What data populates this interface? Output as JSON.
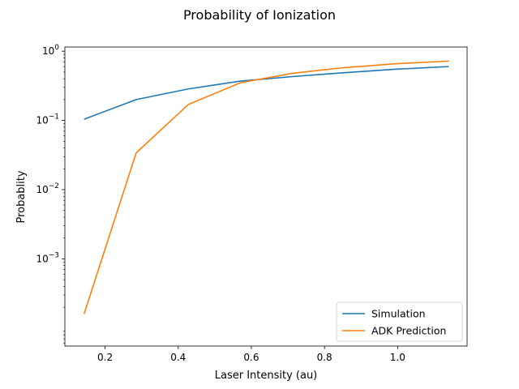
{
  "chart_data": {
    "type": "line",
    "title": "Probability of Ionization",
    "xlabel": "Laser Intensity (au)",
    "ylabel": "Probablity",
    "xlim": [
      0.09,
      1.19
    ],
    "ylim": [
      5.5e-05,
      1.15
    ],
    "yscale": "log",
    "grid": false,
    "legend_position": "bottom-right",
    "x_ticks": [
      0.2,
      0.4,
      0.6,
      0.8,
      1.0
    ],
    "x_tick_labels": [
      "0.2",
      "0.4",
      "0.6",
      "0.8",
      "1.0"
    ],
    "y_ticks": [
      0.001,
      0.01,
      0.1,
      1
    ],
    "y_tick_labels": [
      {
        "base": "10",
        "exp": "−3"
      },
      {
        "base": "10",
        "exp": "−2"
      },
      {
        "base": "10",
        "exp": "−1"
      },
      {
        "base": "10",
        "exp": "0"
      }
    ],
    "x": [
      0.1425,
      0.285,
      0.4275,
      0.57,
      0.7125,
      0.855,
      0.9975,
      1.14
    ],
    "series": [
      {
        "name": "Simulation",
        "color": "#1f77b4",
        "values": [
          0.104,
          0.2,
          0.285,
          0.37,
          0.43,
          0.49,
          0.55,
          0.6
        ]
      },
      {
        "name": "ADK Prediction",
        "color": "#ff7f0e",
        "values": [
          0.00016,
          0.034,
          0.17,
          0.35,
          0.48,
          0.58,
          0.66,
          0.72
        ]
      }
    ]
  }
}
